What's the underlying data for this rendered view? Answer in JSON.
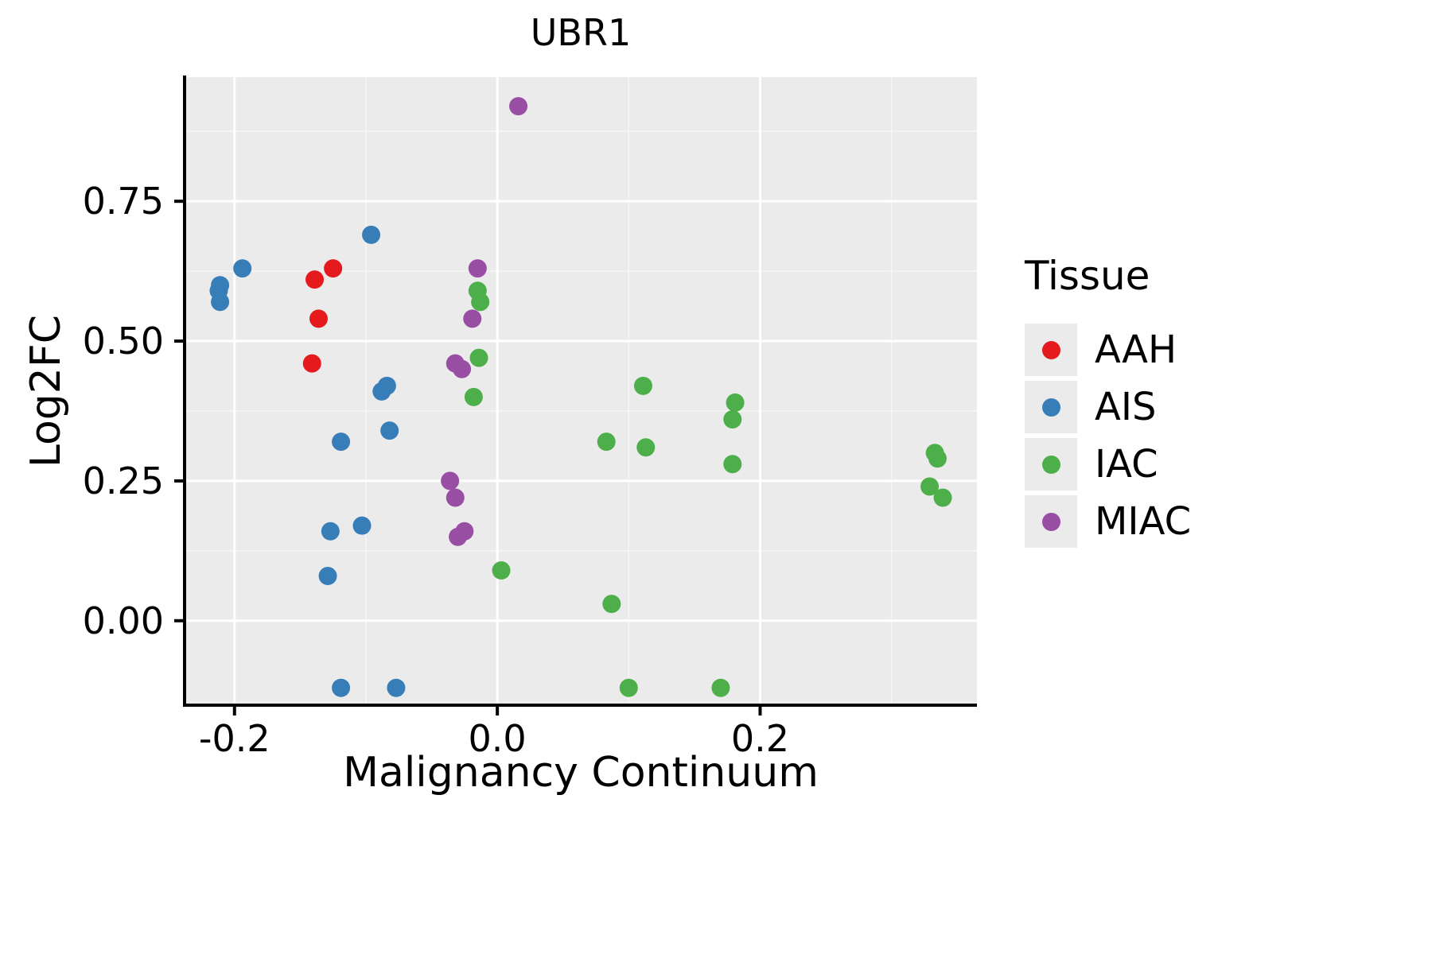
{
  "chart_data": {
    "type": "scatter",
    "title": "UBR1",
    "xlabel": "Malignancy Continuum",
    "ylabel": "Log2FC",
    "legend_title": "Tissue",
    "legend_position": "right",
    "grid": true,
    "xlim": [
      -0.238,
      0.365
    ],
    "ylim": [
      -0.151,
      0.972
    ],
    "x_ticks": [
      -0.2,
      0.0,
      0.2
    ],
    "x_tick_labels": [
      "-0.2",
      "0.0",
      "0.2"
    ],
    "y_ticks": [
      0.0,
      0.25,
      0.5,
      0.75
    ],
    "y_tick_labels": [
      "0.00",
      "0.25",
      "0.50",
      "0.75"
    ],
    "x_minor_ticks": [
      -0.1,
      0.1,
      0.3
    ],
    "y_minor_ticks": [
      0.125,
      0.375,
      0.625,
      0.875
    ],
    "colors": {
      "panel_background": "#EBEBEB",
      "grid_major": "#FFFFFF",
      "grid_minor": "#F5F5F5",
      "axis": "#000000"
    },
    "series": [
      {
        "name": "AAH",
        "color": "#E41A1C",
        "points": [
          [
            -0.125,
            0.63
          ],
          [
            -0.139,
            0.61
          ],
          [
            -0.136,
            0.54
          ],
          [
            -0.141,
            0.46
          ]
        ]
      },
      {
        "name": "AIS",
        "color": "#377EB8",
        "points": [
          [
            -0.096,
            0.69
          ],
          [
            -0.194,
            0.63
          ],
          [
            -0.211,
            0.6
          ],
          [
            -0.212,
            0.59
          ],
          [
            -0.211,
            0.57
          ],
          [
            -0.084,
            0.42
          ],
          [
            -0.088,
            0.41
          ],
          [
            -0.082,
            0.34
          ],
          [
            -0.119,
            0.32
          ],
          [
            -0.103,
            0.17
          ],
          [
            -0.127,
            0.16
          ],
          [
            -0.129,
            0.08
          ],
          [
            -0.119,
            -0.12
          ],
          [
            -0.077,
            -0.12
          ]
        ]
      },
      {
        "name": "IAC",
        "color": "#4DAF4A",
        "points": [
          [
            -0.015,
            0.59
          ],
          [
            -0.013,
            0.57
          ],
          [
            -0.014,
            0.47
          ],
          [
            -0.018,
            0.4
          ],
          [
            0.111,
            0.42
          ],
          [
            0.083,
            0.32
          ],
          [
            0.113,
            0.31
          ],
          [
            0.181,
            0.39
          ],
          [
            0.179,
            0.36
          ],
          [
            0.179,
            0.28
          ],
          [
            0.333,
            0.3
          ],
          [
            0.335,
            0.29
          ],
          [
            0.329,
            0.24
          ],
          [
            0.339,
            0.22
          ],
          [
            0.003,
            0.09
          ],
          [
            0.087,
            0.03
          ],
          [
            0.1,
            -0.12
          ],
          [
            0.17,
            -0.12
          ]
        ]
      },
      {
        "name": "MIAC",
        "color": "#984EA3",
        "points": [
          [
            0.016,
            0.92
          ],
          [
            -0.015,
            0.63
          ],
          [
            -0.019,
            0.54
          ],
          [
            -0.032,
            0.46
          ],
          [
            -0.027,
            0.45
          ],
          [
            -0.036,
            0.25
          ],
          [
            -0.032,
            0.22
          ],
          [
            -0.025,
            0.16
          ],
          [
            -0.03,
            0.15
          ]
        ]
      }
    ]
  }
}
